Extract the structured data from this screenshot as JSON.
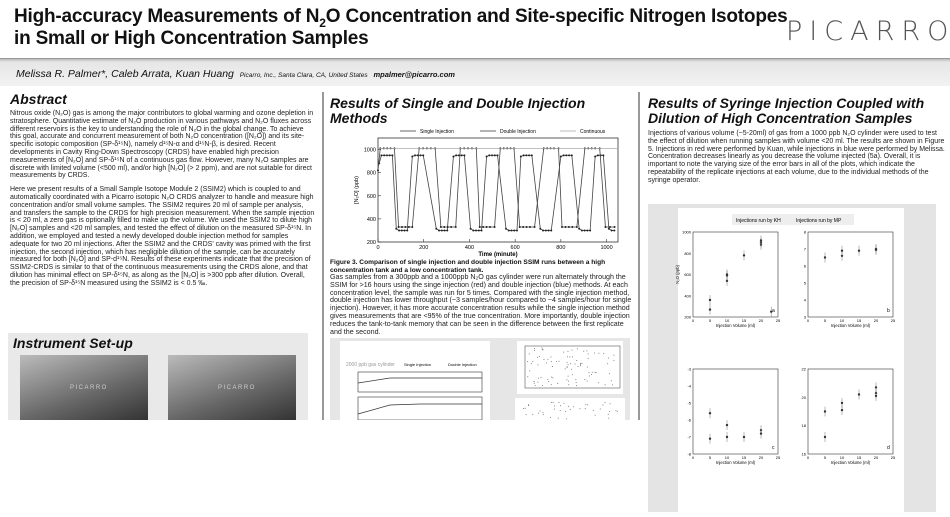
{
  "header": {
    "title_line1_a": "High-accuracy Measurements of N",
    "title_sub": "2",
    "title_line1_b": "O Concentration and Site-specific Nitrogen Isotopes",
    "title_line2": "in Small or High Concentration Samples",
    "logo": "PICARRO",
    "authors": "Melissa R. Palmer*, Caleb Arrata, Kuan Huang",
    "affiliation": "Picarro, Inc., Santa Clara, CA, United States",
    "email": "mpalmer@picarro.com"
  },
  "abstract": {
    "heading": "Abstract",
    "p1": "Nitrous oxide (N₂O) gas is among the major contributors to global warming and ozone depletion in stratosphere. Quantitative estimate of N₂O production in various pathways and N₂O fluxes across different reservoirs is the key to understanding the role of N₂O in the global change.  To achieve this goal, accurate and concurrent measurement of both N₂O concentration ([N₂O]) and its site-specific isotopic composition (SP-δ¹⁵N), namely d¹⁵N-α and d¹⁵N-β, is desired. Recent developments in Cavity Ring-Down Spectroscopy (CRDS) have enabled high precision measurements of [N₂O] and SP-δ¹⁵N of a continuous gas flow. However, many N₂O samples are discrete with limited volume (<500 ml), and/or high [N₂O] (> 2 ppm), and are not suitable for direct measurements by CRDS.",
    "p2": "Here we present results of a Small Sample Isotope Module 2 (SSIM2) which is coupled to and automatically coordinated with a Picarro isotopic N₂O CRDS analyzer to handle and measure high concentration and/or small volume samples. The SSIM2 requires 20 ml of sample per analysis, and transfers the sample to the CRDS for high precision measurement. When the sample injection is < 20 ml, a zero gas is optionally filled to make up the volume. We used the SSIM2 to dilute high [N₂O] samples and <20 ml samples, and tested the effect of dilution on the measured SP-δ¹⁵N. In addition, we employed and tested a newly developed double injection method for samples adequate for two 20 ml injections. After the SSIM2 and the CRDS' cavity was primed with the first injection, the second injection, which has negligible dilution of the sample, can be accurately measured for both [N₂O] and SP-d¹⁵N. Results of these experiments indicate that the precision of SSIM2-CRDS is similar to that of the continuous measurements using the CRDS alone, and that dilution has minimal effect on SP-δ¹⁵N, as along as the [N₂O] is >300 ppb after dilution. Overall, the precision of SP-δ¹⁵N measured using the SSIM2 is < 0.5 ‰."
  },
  "setup": {
    "heading": "Instrument Set-up",
    "photo_label": "PICARRO"
  },
  "middle": {
    "heading": "Results of Single and Double Injection Methods",
    "caption": "Figure 3. Comparison of single injection and double injection SSIM runs between a high concentration tank and a low concentration tank.",
    "text": "Gas samples from a 300ppb and a 1000ppb N₂O gas cylinder were run alternately through the SSIM for >16 hours using the singe injection (red) and double injection (blue) methods.  At each concentration level, the sample was run for 5 times. Compared with the single injection method, double injection has lower throughput (~3 samples/hour compared to ~4 samples/hour for single injection). However, it has more accurate concentration results while the single injection method gives measurements that are <95% of the true concentration. More importantly, double injection reduces the tank-to-tank memory that can be seen in the difference between the first replicate and the second.",
    "small_fig_title": "2000 ppb gas cylinder",
    "small_fig_legend": [
      "Single Injection",
      "Double Injection"
    ]
  },
  "right": {
    "heading": "Results of Syringe Injection Coupled with Dilution of High Concentration Samples",
    "text": "Injections of various volume (~5-20ml) of gas from a 1000 ppb N₂O cylinder were used to test the effect of dilution when running samples with volume <20 ml. The results are shown in Figure 5. Injections in red were performed by Kuan, while injections in blue were performed by Melissa. Concentration decreases linearly as you decrease the volume injected (5a). Overall, it is important to note the varying size of the error bars in all of the plots, which indicate the repeatability of the replicate injections at each volume, due to the individual methods of the syringe operator.",
    "legend": [
      "Injections run by KH",
      "Injections run by MP"
    ]
  },
  "chart_data": [
    {
      "type": "line",
      "xlabel": "Time (minute)",
      "ylabel": "[N₂O] (ppb)",
      "xlim": [
        0,
        1050
      ],
      "ylim": [
        200,
        1100
      ],
      "xticks": [
        0,
        200,
        400,
        600,
        800,
        1000
      ],
      "yticks": [
        200,
        400,
        600,
        800,
        1000
      ],
      "legend_placement": "top",
      "series": [
        {
          "name": "Single Injection",
          "x": [
            5,
            15,
            27,
            39,
            51,
            63,
            80,
            92,
            104,
            116,
            128,
            150,
            162,
            174,
            186,
            198,
            255,
            267,
            279,
            291,
            303,
            330,
            342,
            354,
            366,
            378,
            405,
            417,
            429,
            441,
            453,
            475,
            487,
            499,
            511,
            523,
            560,
            572,
            584,
            596,
            608,
            625,
            637,
            649,
            661,
            673,
            710,
            722,
            734,
            746,
            758,
            800,
            812,
            824,
            836,
            848,
            880,
            892,
            904,
            916,
            928,
            950,
            962,
            974,
            986,
            1010,
            1022,
            1034
          ],
          "y": [
            880,
            950,
            950,
            950,
            950,
            950,
            315,
            300,
            300,
            300,
            300,
            940,
            950,
            950,
            950,
            950,
            315,
            300,
            300,
            300,
            300,
            940,
            950,
            950,
            950,
            950,
            315,
            300,
            300,
            300,
            300,
            940,
            950,
            950,
            950,
            950,
            315,
            300,
            300,
            300,
            300,
            940,
            950,
            950,
            950,
            950,
            315,
            300,
            300,
            300,
            300,
            940,
            950,
            950,
            950,
            950,
            315,
            300,
            300,
            300,
            300,
            940,
            950,
            950,
            950,
            315,
            300,
            300
          ]
        },
        {
          "name": "Double Injection",
          "x": [
            0,
            10,
            25,
            40,
            55,
            72,
            90,
            105,
            120,
            135,
            150,
            180,
            197,
            214,
            231,
            250,
            275,
            290,
            305,
            320,
            340,
            360,
            377,
            394,
            411,
            430,
            445,
            460,
            475,
            490,
            510,
            535,
            550,
            565,
            580,
            595,
            620,
            635,
            650,
            665,
            685,
            725,
            740,
            755,
            770,
            790,
            805,
            820,
            835,
            850,
            870,
            905,
            920,
            935,
            950,
            970,
            995,
            1015,
            1035
          ],
          "y": [
            820,
            1010,
            1010,
            1010,
            1010,
            1010,
            330,
            330,
            330,
            330,
            330,
            1010,
            1010,
            1010,
            1010,
            1010,
            330,
            330,
            330,
            330,
            330,
            1010,
            1010,
            1010,
            1010,
            1010,
            330,
            330,
            330,
            330,
            330,
            1010,
            1010,
            1010,
            1010,
            1010,
            330,
            330,
            330,
            330,
            330,
            1010,
            1010,
            1010,
            1010,
            1010,
            330,
            330,
            330,
            330,
            330,
            1010,
            1010,
            1010,
            1010,
            1010,
            330,
            330,
            330
          ]
        },
        {
          "name": "Continuous",
          "x": [
            0,
            1050
          ],
          "y": [
            1010,
            1010
          ]
        }
      ]
    },
    {
      "type": "scatter",
      "panel": "a",
      "xlabel": "Injection Volume (ml)",
      "ylabel": "N₂O (ppb)",
      "xlim": [
        0,
        25
      ],
      "ylim": [
        200,
        1000
      ],
      "xticks": [
        0,
        5,
        10,
        15,
        20,
        25
      ],
      "yticks": [
        200,
        400,
        600,
        800,
        1000
      ],
      "points": [
        [
          5,
          270
        ],
        [
          5,
          360
        ],
        [
          10,
          540
        ],
        [
          10,
          590
        ],
        [
          10,
          600
        ],
        [
          15,
          780
        ],
        [
          20,
          880
        ],
        [
          20,
          900
        ],
        [
          20,
          920
        ],
        [
          23,
          250
        ]
      ]
    },
    {
      "type": "scatter",
      "panel": "b",
      "xlabel": "Injection Volume (ml)",
      "ylabel": "",
      "xlim": [
        0,
        25
      ],
      "ylim": [
        3,
        8
      ],
      "xticks": [
        0,
        5,
        10,
        15,
        20,
        25
      ],
      "yticks": [
        3,
        4,
        5,
        6,
        7,
        8
      ],
      "points": [
        [
          5,
          6.5
        ],
        [
          10,
          6.6
        ],
        [
          10,
          6.9
        ],
        [
          15,
          6.9
        ],
        [
          20,
          7.0
        ],
        [
          20,
          6.95
        ]
      ]
    },
    {
      "type": "scatter",
      "panel": "c",
      "xlabel": "Injection Volume (ml)",
      "ylabel": "",
      "xlim": [
        0,
        25
      ],
      "ylim": [
        -8,
        -3
      ],
      "xticks": [
        0,
        5,
        10,
        15,
        20,
        25
      ],
      "yticks": [
        -8,
        -7,
        -6,
        -5,
        -4,
        -3
      ],
      "points": [
        [
          5,
          -5.6
        ],
        [
          5,
          -7.1
        ],
        [
          10,
          -6.3
        ],
        [
          10,
          -7.0
        ],
        [
          15,
          -7.0
        ],
        [
          20,
          -6.6
        ],
        [
          20,
          -6.8
        ]
      ]
    },
    {
      "type": "scatter",
      "panel": "d",
      "xlabel": "Injection Volume (ml)",
      "ylabel": "",
      "xlim": [
        0,
        25
      ],
      "ylim": [
        16,
        22
      ],
      "xticks": [
        0,
        5,
        10,
        15,
        20,
        25
      ],
      "yticks": [
        16,
        18,
        20,
        22
      ],
      "points": [
        [
          5,
          19.0
        ],
        [
          5,
          17.2
        ],
        [
          10,
          19.6
        ],
        [
          10,
          19.1
        ],
        [
          15,
          20.2
        ],
        [
          20,
          20.7
        ],
        [
          20,
          20.3
        ],
        [
          20,
          20.1
        ]
      ]
    }
  ]
}
